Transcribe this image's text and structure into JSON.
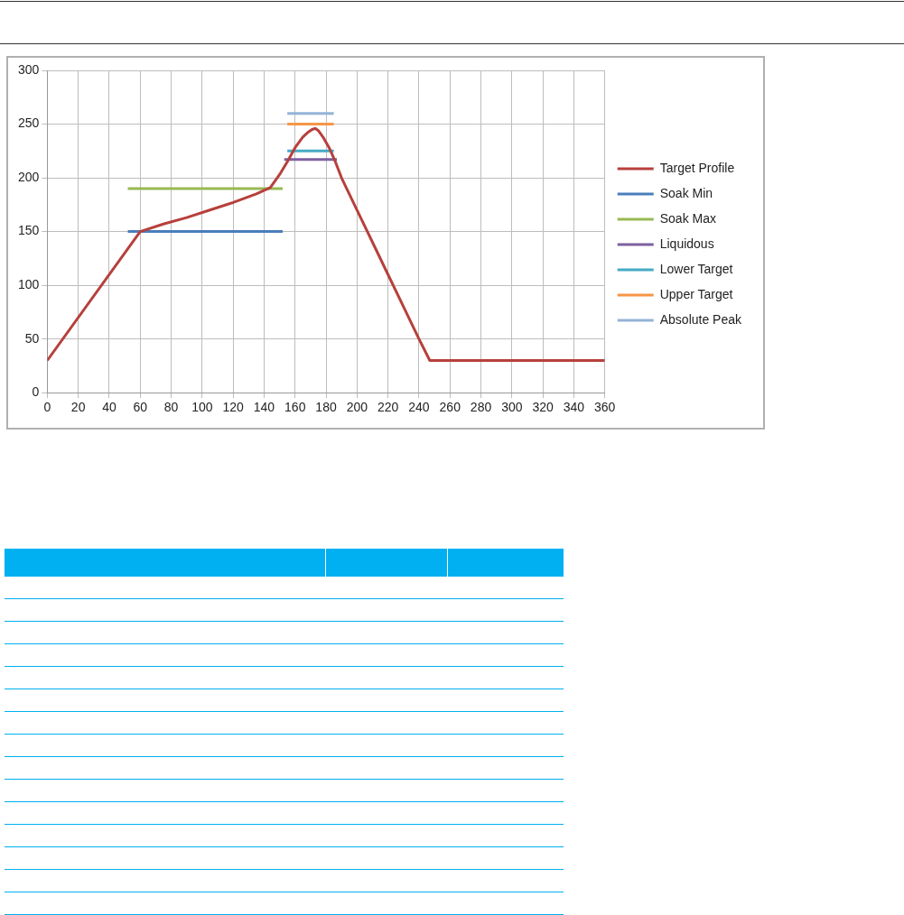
{
  "chart_data": {
    "type": "line",
    "xlim": [
      0,
      360
    ],
    "xticks": [
      0,
      20,
      40,
      60,
      80,
      100,
      120,
      140,
      160,
      180,
      200,
      220,
      240,
      260,
      280,
      300,
      320,
      340,
      360
    ],
    "ylim": [
      0,
      300
    ],
    "yticks": [
      0,
      50,
      100,
      150,
      200,
      250,
      300
    ],
    "grid": true,
    "legend": "right",
    "marker": "none",
    "line_style": "solid",
    "series": [
      {
        "name": "Target Profile",
        "color": "#b7403c",
        "x": [
          0,
          60,
          75,
          90,
          105,
          120,
          135,
          144,
          150,
          155,
          160,
          165,
          168,
          171,
          173,
          175,
          178,
          182,
          186,
          190,
          200,
          210,
          220,
          230,
          240,
          247,
          360
        ],
        "values": [
          30,
          150,
          157,
          163,
          170,
          177,
          185,
          191,
          203,
          215,
          228,
          238,
          242,
          245,
          246,
          244,
          238,
          228,
          215,
          200,
          170,
          140,
          110,
          80,
          50,
          30,
          30
        ]
      },
      {
        "name": "Soak Min",
        "color": "#4a7ebb",
        "x": [
          52,
          152
        ],
        "values": [
          150,
          150
        ]
      },
      {
        "name": "Soak Max",
        "color": "#98b954",
        "x": [
          52,
          152
        ],
        "values": [
          190,
          190
        ]
      },
      {
        "name": "Liquidous",
        "color": "#7d60a0",
        "x": [
          153,
          187
        ],
        "values": [
          217,
          217
        ]
      },
      {
        "name": "Lower Target",
        "color": "#46aac5",
        "x": [
          155,
          185
        ],
        "values": [
          225,
          225
        ]
      },
      {
        "name": "Upper Target",
        "color": "#f79646",
        "x": [
          155,
          185
        ],
        "values": [
          250,
          250
        ]
      },
      {
        "name": "Absolute Peak",
        "color": "#95b3d7",
        "x": [
          155,
          185
        ],
        "values": [
          260,
          260
        ]
      }
    ]
  }
}
